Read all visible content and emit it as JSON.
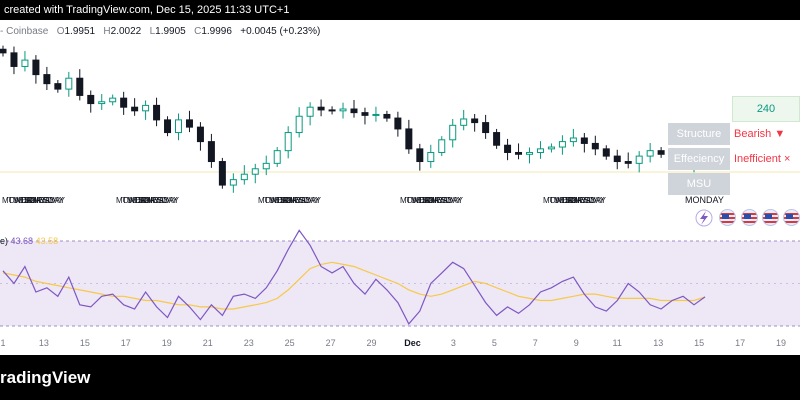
{
  "header": {
    "text": "created with TradingView.com, Dec 15, 2025 11:33 UTC+1"
  },
  "ohlc": {
    "exchange": "- Coinbase",
    "o_label": "O",
    "o": "1.9951",
    "h_label": "H",
    "h": "2.0022",
    "l_label": "L",
    "l": "1.9905",
    "c_label": "C",
    "c": "1.9996",
    "change": "+0.0045 (+0.23%)"
  },
  "panel": {
    "timeframe": "240",
    "rows": [
      {
        "label": "Structure",
        "value": "Bearish ▼"
      },
      {
        "label": "Effeciency",
        "value": "Inefficient ×"
      },
      {
        "label": "MSU",
        "value": ""
      }
    ]
  },
  "day_labels": [
    {
      "text": "MONDAY"
    },
    {
      "text": "TUESDAY"
    },
    {
      "text": "WEDNESDAY"
    },
    {
      "text": "THURSDAY"
    },
    {
      "text": "FRIDAY"
    }
  ],
  "monday_label": "MONDAY",
  "rsi_label": {
    "prefix": "e)",
    "value1": "43.68",
    "value2": "43.58"
  },
  "x_axis_labels": [
    "1",
    "13",
    "15",
    "17",
    "19",
    "21",
    "23",
    "25",
    "27",
    "29",
    "Dec",
    "3",
    "5",
    "7",
    "9",
    "11",
    "13",
    "15",
    "17",
    "19"
  ],
  "footer": {
    "brand": "radingView"
  },
  "colors": {
    "up": "#089981",
    "down": "#131722",
    "rsi": "#7e57c2",
    "rsi_ma": "#f7c948",
    "rsi_band": "#ede7f6",
    "header_bg": "#000000"
  },
  "icons": [
    "lightning-icon",
    "us-flag-icon",
    "us-flag-icon",
    "us-flag-icon",
    "us-flag-icon"
  ],
  "chart_data": {
    "type": "candlestick",
    "price_series": [
      2.118,
      2.103,
      2.11,
      2.094,
      2.084,
      2.078,
      2.09,
      2.071,
      2.062,
      2.064,
      2.068,
      2.058,
      2.054,
      2.06,
      2.044,
      2.03,
      2.044,
      2.036,
      2.02,
      1.998,
      1.972,
      1.978,
      1.984,
      1.99,
      1.996,
      2.01,
      2.03,
      2.048,
      2.058,
      2.055,
      2.054,
      2.056,
      2.052,
      2.049,
      2.05,
      2.046,
      2.034,
      2.012,
      1.998,
      2.008,
      2.022,
      2.038,
      2.045,
      2.041,
      2.03,
      2.016,
      2.008,
      2.006,
      2.008,
      2.012,
      2.014,
      2.02,
      2.024,
      2.018,
      2.012,
      2.004,
      1.998,
      1.996,
      2.004,
      2.01,
      2.006,
      2.0,
      1.996,
      1.997,
      1.9996
    ],
    "rsi": [
      56,
      50,
      58,
      46,
      48,
      44,
      53,
      40,
      39,
      44,
      45,
      40,
      38,
      46,
      39,
      34,
      44,
      39,
      33,
      40,
      35,
      44,
      45,
      43,
      48,
      56,
      66,
      75,
      68,
      58,
      55,
      58,
      50,
      45,
      52,
      47,
      41,
      31,
      37,
      50,
      55,
      60,
      57,
      49,
      41,
      35,
      39,
      36,
      40,
      46,
      48,
      51,
      53,
      45,
      39,
      37,
      42,
      50,
      46,
      40,
      38,
      42,
      44,
      40,
      43.68
    ],
    "rsi_ma": [
      55,
      54,
      53,
      51,
      50,
      49,
      48,
      47,
      46,
      45,
      44,
      44,
      43,
      42,
      42,
      41,
      40,
      40,
      39,
      39,
      38,
      38,
      39,
      40,
      41,
      43,
      47,
      52,
      57,
      59,
      60,
      59,
      58,
      56,
      54,
      52,
      50,
      47,
      45,
      44,
      45,
      47,
      49,
      51,
      50,
      48,
      46,
      44,
      43,
      42,
      42,
      43,
      44,
      45,
      45,
      44,
      43,
      43,
      43,
      43,
      42,
      42,
      42,
      42,
      43.58
    ]
  }
}
